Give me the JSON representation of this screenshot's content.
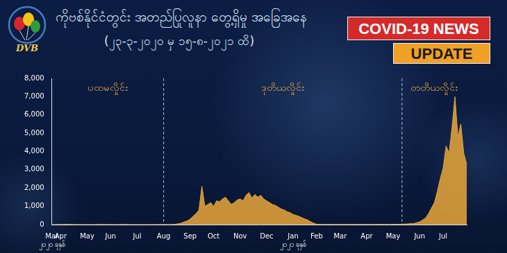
{
  "header": {
    "logo": "DVB",
    "title": "ကိုဗစ်နိုင်ငံတွင်း အတည်ပြုလူနာ တွေ့ရှိမှု အခြေအနေ",
    "subtitle": "(၂၃-၃-၂၀၂၀ မှ ၁၅-၈-၂၀၂၁ ထိ)",
    "badges": [
      "COVID-19 NEWS",
      "UPDATE"
    ]
  },
  "chart_data": {
    "type": "area",
    "color": "#e3a33a",
    "grid": false,
    "ylim": [
      0,
      8000
    ],
    "yticks": [
      0,
      {
        "value": 1000,
        "label": "1,000"
      },
      {
        "value": 2000,
        "label": "2,000"
      },
      {
        "value": 3000,
        "label": "3,000"
      },
      {
        "value": 4000,
        "label": "4,000"
      },
      {
        "value": 5000,
        "label": "5,000"
      },
      {
        "value": 6000,
        "label": "6,000"
      },
      {
        "value": 7000,
        "label": "7,000"
      },
      {
        "value": 8000,
        "label": "8,000"
      }
    ],
    "waves": [
      {
        "label": "ပထမလှိုင်း",
        "start": 0
      },
      {
        "label": "ဒုတိယလှိုင်း",
        "start": 38
      },
      {
        "label": "တတိယလှိုင်း",
        "start": 119
      }
    ],
    "categories": [
      [
        "Mar",
        "၂၀၂၀ ခုနှစ်"
      ],
      null,
      null,
      "Apr",
      null,
      null,
      null,
      null,
      null,
      null,
      null,
      null,
      "May",
      null,
      null,
      null,
      null,
      null,
      null,
      null,
      "Jun",
      null,
      null,
      null,
      null,
      null,
      null,
      null,
      null,
      "Jul",
      null,
      null,
      null,
      null,
      null,
      null,
      null,
      null,
      "Aug",
      null,
      null,
      null,
      null,
      null,
      null,
      null,
      null,
      "Sep",
      null,
      null,
      null,
      null,
      null,
      null,
      null,
      "Oct",
      null,
      null,
      null,
      null,
      null,
      null,
      null,
      null,
      "Nov",
      null,
      null,
      null,
      null,
      null,
      null,
      null,
      null,
      "Dec",
      null,
      null,
      null,
      null,
      null,
      null,
      null,
      null,
      [
        "Jan",
        "၂၀၂၁ ခုနှစ်"
      ],
      null,
      null,
      null,
      null,
      null,
      null,
      null,
      "Feb",
      null,
      null,
      null,
      null,
      null,
      null,
      null,
      "Mar",
      null,
      null,
      null,
      null,
      null,
      null,
      null,
      null,
      "Apr",
      null,
      null,
      null,
      null,
      null,
      null,
      null,
      null,
      "May",
      null,
      null,
      null,
      null,
      null,
      null,
      null,
      null,
      "Jun",
      null,
      null,
      null,
      null,
      null,
      null,
      null,
      "Jul",
      null,
      null,
      null,
      null,
      null,
      null,
      null,
      null
    ],
    "values": [
      2,
      3,
      5,
      8,
      10,
      15,
      8,
      5,
      3,
      4,
      2,
      3,
      2,
      1,
      3,
      2,
      5,
      8,
      4,
      3,
      6,
      2,
      3,
      4,
      10,
      5,
      3,
      2,
      4,
      3,
      2,
      1,
      3,
      2,
      4,
      2,
      3,
      5,
      3,
      4,
      3,
      5,
      20,
      50,
      80,
      150,
      200,
      300,
      450,
      600,
      800,
      2100,
      1000,
      1100,
      1200,
      1000,
      1300,
      1250,
      1400,
      1500,
      1300,
      1100,
      1200,
      1350,
      1400,
      1300,
      1600,
      1750,
      1450,
      1650,
      1500,
      1600,
      1400,
      1300,
      1200,
      1100,
      1050,
      950,
      850,
      800,
      700,
      650,
      550,
      500,
      450,
      380,
      300,
      250,
      150,
      80,
      20,
      10,
      8,
      12,
      6,
      10,
      5,
      8,
      10,
      6,
      12,
      8,
      5,
      10,
      7,
      12,
      8,
      10,
      6,
      9,
      12,
      8,
      15,
      10,
      12,
      9,
      15,
      18,
      20,
      25,
      30,
      40,
      55,
      60,
      100,
      150,
      250,
      350,
      600,
      900,
      1200,
      1800,
      2500,
      3100,
      4300,
      3900,
      5300,
      7000,
      4800,
      5500,
      3900,
      3300
    ]
  }
}
